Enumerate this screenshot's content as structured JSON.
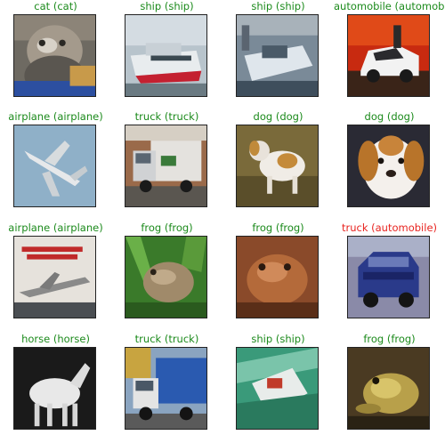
{
  "grid": {
    "cells": [
      {
        "label": "cat (cat)",
        "correct": true
      },
      {
        "label": "ship (ship)",
        "correct": true
      },
      {
        "label": "ship (ship)",
        "correct": true
      },
      {
        "label": "automobile (automobile)",
        "correct": true
      },
      {
        "label": "airplane (airplane)",
        "correct": true
      },
      {
        "label": "truck (truck)",
        "correct": true
      },
      {
        "label": "dog (dog)",
        "correct": true
      },
      {
        "label": "dog (dog)",
        "correct": true
      },
      {
        "label": "airplane (airplane)",
        "correct": true
      },
      {
        "label": "frog (frog)",
        "correct": true
      },
      {
        "label": "frog (frog)",
        "correct": true
      },
      {
        "label": "truck (automobile)",
        "correct": false
      },
      {
        "label": "horse (horse)",
        "correct": true
      },
      {
        "label": "truck (truck)",
        "correct": true
      },
      {
        "label": "ship (ship)",
        "correct": true
      },
      {
        "label": "frog (frog)",
        "correct": true
      }
    ]
  },
  "colors": {
    "correct": "#1b8a1b",
    "wrong": "#e8231f"
  }
}
